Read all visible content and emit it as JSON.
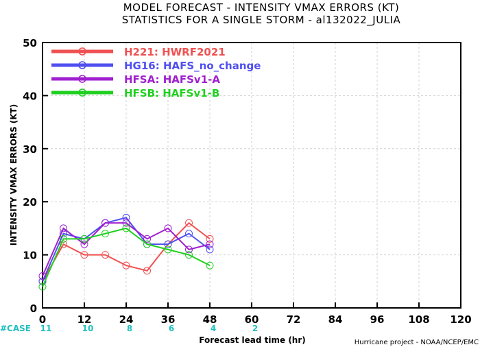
{
  "chart_data": {
    "type": "line",
    "title_line1": "MODEL FORECAST - INTENSITY VMAX ERRORS (KT)",
    "title_line2": "STATISTICS FOR A SINGLE STORM - al132022_JULIA",
    "xlabel": "Forecast lead time (hr)",
    "ylabel": "INTENSITY VMAX ERRORS (KT)",
    "xlim": [
      0,
      120
    ],
    "ylim": [
      0,
      50
    ],
    "x_ticks": [
      0,
      12,
      24,
      36,
      48,
      60,
      72,
      84,
      96,
      108,
      120
    ],
    "y_ticks": [
      0,
      10,
      20,
      30,
      40,
      50
    ],
    "grid": true,
    "legend_position": "top-left",
    "case_label": "#CASE",
    "case_counts": [
      {
        "x": 0,
        "label": "11"
      },
      {
        "x": 12,
        "label": "10"
      },
      {
        "x": 24,
        "label": "8"
      },
      {
        "x": 36,
        "label": "6"
      },
      {
        "x": 48,
        "label": "4"
      },
      {
        "x": 60,
        "label": "2"
      }
    ],
    "credit": "Hurricane project - NOAA/NCEP/EMC",
    "series": [
      {
        "name": "H221: HWRF2021",
        "color": "#f05050",
        "x": [
          0,
          6,
          12,
          18,
          24,
          30,
          36,
          42,
          48
        ],
        "y": [
          5,
          12,
          10,
          10,
          8,
          7,
          12,
          16,
          13
        ]
      },
      {
        "name": "HG16: HAFS_no_change",
        "color": "#4f4ff0",
        "x": [
          0,
          6,
          12,
          18,
          24,
          30,
          36,
          42,
          48
        ],
        "y": [
          5,
          14,
          13,
          16,
          17,
          12,
          12,
          14,
          11
        ]
      },
      {
        "name": "HFSA: HAFSv1-A",
        "color": "#a020d0",
        "x": [
          0,
          6,
          12,
          18,
          24,
          30,
          36,
          42,
          48
        ],
        "y": [
          6,
          15,
          12,
          16,
          16,
          13,
          15,
          11,
          12
        ]
      },
      {
        "name": "HFSB: HAFSv1-B",
        "color": "#20d020",
        "x": [
          0,
          6,
          12,
          18,
          24,
          30,
          36,
          42,
          48
        ],
        "y": [
          4,
          13,
          13,
          14,
          15,
          12,
          11,
          10,
          8
        ]
      }
    ]
  }
}
